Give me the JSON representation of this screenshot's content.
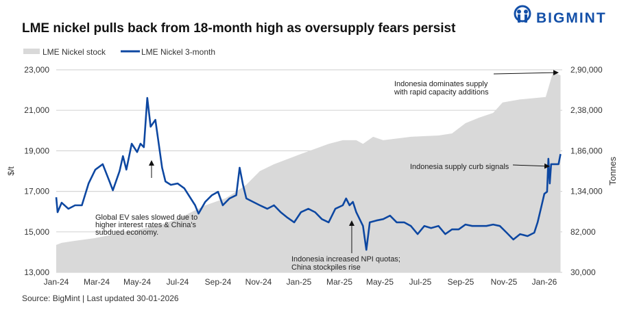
{
  "brand": {
    "name": "BIGMINT",
    "color": "#1450a8"
  },
  "source": "Source: BigMint | Last updated 30-01-2026",
  "chart_data": {
    "type": "line+area",
    "title": "LME nickel pulls back from 18-month high as oversupply fears persist",
    "ylabel": "$/t",
    "y2label": "Tonnes",
    "ylim": [
      13000,
      23000
    ],
    "y2lim": [
      30000,
      290000
    ],
    "yticks": [
      "13,000",
      "15,000",
      "17,000",
      "19,000",
      "21,000",
      "23,000"
    ],
    "y2ticks": [
      "30,000",
      "82,000",
      "1,34,000",
      "1,86,000",
      "2,38,000",
      "2,90,000"
    ],
    "xticks": [
      "Jan-24",
      "Mar-24",
      "May-24",
      "Jul-24",
      "Sep-24",
      "Nov-24",
      "Jan-25",
      "Mar-25",
      "May-25",
      "Jul-25",
      "Sep-25",
      "Nov-25",
      "Jan-26"
    ],
    "grid": true,
    "legend_position": "top-left",
    "series": [
      {
        "name": "LME Nickel stock",
        "type": "area",
        "axis": "right",
        "color": "#d9d9d9",
        "points": [
          [
            "2024-01-01",
            65200
          ],
          [
            "2024-01-09",
            67900
          ],
          [
            "2024-01-29",
            70500
          ],
          [
            "2024-02-29",
            74000
          ],
          [
            "2024-04-10",
            81000
          ],
          [
            "2024-06-01",
            90000
          ],
          [
            "2024-07-01",
            98600
          ],
          [
            "2024-08-12",
            116000
          ],
          [
            "2024-09-12",
            125000
          ],
          [
            "2024-09-28",
            133700
          ],
          [
            "2024-10-13",
            142500
          ],
          [
            "2024-11-03",
            160000
          ],
          [
            "2024-11-24",
            168800
          ],
          [
            "2025-01-04",
            182000
          ],
          [
            "2025-02-15",
            195000
          ],
          [
            "2025-03-06",
            199600
          ],
          [
            "2025-03-26",
            199600
          ],
          [
            "2025-04-06",
            195000
          ],
          [
            "2025-04-21",
            204000
          ],
          [
            "2025-05-06",
            199600
          ],
          [
            "2025-06-17",
            204000
          ],
          [
            "2025-07-28",
            205700
          ],
          [
            "2025-08-18",
            208300
          ],
          [
            "2025-09-08",
            221500
          ],
          [
            "2025-09-28",
            228500
          ],
          [
            "2025-10-19",
            234700
          ],
          [
            "2025-11-03",
            248000
          ],
          [
            "2025-11-29",
            252000
          ],
          [
            "2026-01-07",
            255000
          ],
          [
            "2026-01-18",
            287400
          ],
          [
            "2026-01-29",
            283000
          ]
        ]
      },
      {
        "name": "LME Nickel 3-month",
        "type": "line",
        "axis": "left",
        "color": "#0d47a1",
        "points": [
          [
            "2024-01-01",
            16710
          ],
          [
            "2024-01-03",
            15970
          ],
          [
            "2024-01-09",
            16440
          ],
          [
            "2024-01-19",
            16140
          ],
          [
            "2024-01-29",
            16310
          ],
          [
            "2024-02-09",
            16310
          ],
          [
            "2024-02-19",
            17390
          ],
          [
            "2024-02-29",
            18070
          ],
          [
            "2024-03-10",
            18340
          ],
          [
            "2024-03-20",
            17490
          ],
          [
            "2024-03-25",
            17050
          ],
          [
            "2024-04-05",
            18000
          ],
          [
            "2024-04-10",
            18740
          ],
          [
            "2024-04-15",
            18070
          ],
          [
            "2024-04-23",
            19350
          ],
          [
            "2024-05-01",
            18940
          ],
          [
            "2024-05-06",
            19350
          ],
          [
            "2024-05-11",
            19180
          ],
          [
            "2024-05-16",
            21610
          ],
          [
            "2024-05-21",
            20190
          ],
          [
            "2024-05-28",
            20530
          ],
          [
            "2024-06-03",
            19350
          ],
          [
            "2024-06-08",
            18170
          ],
          [
            "2024-06-13",
            17490
          ],
          [
            "2024-06-21",
            17320
          ],
          [
            "2024-07-01",
            17390
          ],
          [
            "2024-07-11",
            17150
          ],
          [
            "2024-07-27",
            16310
          ],
          [
            "2024-08-02",
            15900
          ],
          [
            "2024-08-12",
            16480
          ],
          [
            "2024-08-22",
            16810
          ],
          [
            "2024-09-01",
            16980
          ],
          [
            "2024-09-08",
            16310
          ],
          [
            "2024-09-18",
            16650
          ],
          [
            "2024-09-28",
            16810
          ],
          [
            "2024-10-03",
            18170
          ],
          [
            "2024-10-08",
            17320
          ],
          [
            "2024-10-13",
            16650
          ],
          [
            "2024-10-23",
            16480
          ],
          [
            "2024-11-03",
            16310
          ],
          [
            "2024-11-14",
            16140
          ],
          [
            "2024-11-24",
            16310
          ],
          [
            "2024-12-04",
            15970
          ],
          [
            "2024-12-14",
            15700
          ],
          [
            "2024-12-24",
            15470
          ],
          [
            "2025-01-04",
            15970
          ],
          [
            "2025-01-15",
            16140
          ],
          [
            "2025-01-25",
            15970
          ],
          [
            "2025-02-05",
            15630
          ],
          [
            "2025-02-15",
            15470
          ],
          [
            "2025-02-25",
            16140
          ],
          [
            "2025-03-06",
            16310
          ],
          [
            "2025-03-11",
            16650
          ],
          [
            "2025-03-16",
            16310
          ],
          [
            "2025-03-21",
            16480
          ],
          [
            "2025-03-26",
            15970
          ],
          [
            "2025-04-06",
            15290
          ],
          [
            "2025-04-11",
            14110
          ],
          [
            "2025-04-16",
            15470
          ],
          [
            "2025-04-26",
            15560
          ],
          [
            "2025-05-06",
            15630
          ],
          [
            "2025-05-16",
            15800
          ],
          [
            "2025-05-26",
            15470
          ],
          [
            "2025-06-07",
            15470
          ],
          [
            "2025-06-17",
            15290
          ],
          [
            "2025-06-27",
            14890
          ],
          [
            "2025-07-07",
            15290
          ],
          [
            "2025-07-17",
            15190
          ],
          [
            "2025-07-28",
            15290
          ],
          [
            "2025-08-08",
            14890
          ],
          [
            "2025-08-18",
            15120
          ],
          [
            "2025-08-28",
            15120
          ],
          [
            "2025-09-08",
            15360
          ],
          [
            "2025-09-18",
            15290
          ],
          [
            "2025-09-28",
            15290
          ],
          [
            "2025-10-09",
            15290
          ],
          [
            "2025-10-19",
            15360
          ],
          [
            "2025-10-29",
            15290
          ],
          [
            "2025-11-09",
            14960
          ],
          [
            "2025-11-19",
            14620
          ],
          [
            "2025-11-29",
            14890
          ],
          [
            "2025-12-10",
            14790
          ],
          [
            "2025-12-20",
            14960
          ],
          [
            "2025-12-25",
            15470
          ],
          [
            "2026-01-01",
            16310
          ],
          [
            "2026-01-05",
            16880
          ],
          [
            "2026-01-09",
            16980
          ],
          [
            "2026-01-11",
            18610
          ],
          [
            "2026-01-13",
            17390
          ],
          [
            "2026-01-15",
            18340
          ],
          [
            "2026-01-26",
            18340
          ],
          [
            "2026-01-29",
            18840
          ]
        ]
      }
    ],
    "annotations": [
      {
        "lines": [
          "Global EV sales slowed due to",
          "higher interest rates & China's",
          "subdued economy."
        ]
      },
      {
        "lines": [
          "Indonesia increased NPI quotas;",
          "China stockpiles rise"
        ]
      },
      {
        "lines": [
          "Indonesia dominates supply",
          "with rapid capacity additions"
        ]
      },
      {
        "lines": [
          "Indonesia supply curb signals"
        ]
      }
    ]
  }
}
